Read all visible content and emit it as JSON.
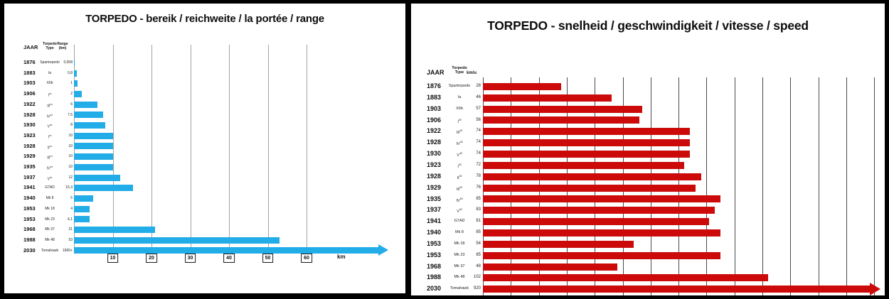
{
  "chart_data": [
    {
      "type": "bar",
      "orientation": "horizontal",
      "panel": "left",
      "title": "TORPEDO - bereik / reichweite / la portée / range",
      "bar_color": "#22ACE8",
      "grid_color": "#a3a3a3",
      "unit": "km",
      "xlabel": "km",
      "axis_ticks": [
        "10",
        "20",
        "30",
        "40",
        "50",
        "60"
      ],
      "xlim": [
        0,
        62
      ],
      "legend": "none",
      "table_headers": {
        "year": "JAAR",
        "type": [
          "Torpedo",
          "Type"
        ],
        "value": [
          "Range",
          "(km)"
        ]
      },
      "rows": [
        {
          "year": "1876",
          "type": "Spartorpedo",
          "sup": "",
          "value_label": "0,008",
          "value": 0.008,
          "arrow": false
        },
        {
          "year": "1883",
          "type": "Ia",
          "sup": "",
          "value_label": "0,8",
          "value": 0.8,
          "arrow": false
        },
        {
          "year": "1903",
          "type": "XIIb",
          "sup": "",
          "value_label": "1",
          "value": 1,
          "arrow": false
        },
        {
          "year": "1906",
          "type": "I",
          "sup": "50",
          "value_label": "2",
          "value": 2,
          "arrow": false
        },
        {
          "year": "1922",
          "type": "III",
          "sup": "45",
          "value_label": "6",
          "value": 6,
          "arrow": false
        },
        {
          "year": "1928",
          "type": "IV",
          "sup": "45",
          "value_label": "7,5",
          "value": 7.5,
          "arrow": false
        },
        {
          "year": "1930",
          "type": "V",
          "sup": "45",
          "value_label": "8",
          "value": 8,
          "arrow": false
        },
        {
          "year": "1923",
          "type": "I",
          "sup": "53",
          "value_label": "10",
          "value": 10,
          "arrow": false
        },
        {
          "year": "1928",
          "type": "II",
          "sup": "53",
          "value_label": "10",
          "value": 10,
          "arrow": false
        },
        {
          "year": "1929",
          "type": "III",
          "sup": "53",
          "value_label": "10",
          "value": 10,
          "arrow": false
        },
        {
          "year": "1935",
          "type": "IV",
          "sup": "53",
          "value_label": "10",
          "value": 10,
          "arrow": false
        },
        {
          "year": "1937",
          "type": "V",
          "sup": "53",
          "value_label": "12",
          "value": 12,
          "arrow": false
        },
        {
          "year": "1941",
          "type": "G7AD",
          "sup": "",
          "value_label": "15,3",
          "value": 15.3,
          "arrow": false
        },
        {
          "year": "1940",
          "type": "Mk 8",
          "sup": "",
          "value_label": "5",
          "value": 5,
          "arrow": false
        },
        {
          "year": "1953",
          "type": "Mk 18",
          "sup": "",
          "value_label": "4",
          "value": 4,
          "arrow": false
        },
        {
          "year": "1953",
          "type": "Mk 23",
          "sup": "",
          "value_label": "4,1",
          "value": 4.1,
          "arrow": false
        },
        {
          "year": "1968",
          "type": "Mk 37",
          "sup": "",
          "value_label": "21",
          "value": 21,
          "arrow": false
        },
        {
          "year": "1988",
          "type": "Mk 48",
          "sup": "",
          "value_label": "53",
          "value": 53,
          "arrow": false
        },
        {
          "year": "2030",
          "type": "Tomahawk",
          "sup": "",
          "value_label": "1600+",
          "value": 1600,
          "arrow": true
        }
      ]
    },
    {
      "type": "bar",
      "orientation": "horizontal",
      "panel": "right",
      "title": "TORPEDO - snelheid / geschwindigkeit / vitesse / speed",
      "bar_color": "#CC0A0A",
      "grid_color": "#4a4a4a",
      "unit": "km/u",
      "xlabel": "km/u",
      "axis_ticks": [],
      "xlim": [
        0,
        140
      ],
      "legend": "none",
      "table_headers": {
        "year": "JAAR",
        "type": [
          "Torpedo",
          "Type"
        ],
        "value": [
          "km/u"
        ]
      },
      "rows": [
        {
          "year": "1876",
          "type": "Spartorpedo",
          "sup": "",
          "value_label": "28",
          "value": 28,
          "arrow": false
        },
        {
          "year": "1883",
          "type": "Ia",
          "sup": "",
          "value_label": "46",
          "value": 46,
          "arrow": false
        },
        {
          "year": "1903",
          "type": "XIIb",
          "sup": "",
          "value_label": "57",
          "value": 57,
          "arrow": false
        },
        {
          "year": "1906",
          "type": "I",
          "sup": "50",
          "value_label": "56",
          "value": 56,
          "arrow": false
        },
        {
          "year": "1922",
          "type": "III",
          "sup": "45",
          "value_label": "74",
          "value": 74,
          "arrow": false
        },
        {
          "year": "1928",
          "type": "IV",
          "sup": "45",
          "value_label": "74",
          "value": 74,
          "arrow": false
        },
        {
          "year": "1930",
          "type": "V",
          "sup": "45",
          "value_label": "74",
          "value": 74,
          "arrow": false
        },
        {
          "year": "1923",
          "type": "I",
          "sup": "53",
          "value_label": "72",
          "value": 72,
          "arrow": false
        },
        {
          "year": "1928",
          "type": "II",
          "sup": "53",
          "value_label": "78",
          "value": 78,
          "arrow": false
        },
        {
          "year": "1929",
          "type": "III",
          "sup": "53",
          "value_label": "76",
          "value": 76,
          "arrow": false
        },
        {
          "year": "1935",
          "type": "IV",
          "sup": "53",
          "value_label": "85",
          "value": 85,
          "arrow": false
        },
        {
          "year": "1937",
          "type": "V",
          "sup": "53",
          "value_label": "83",
          "value": 83,
          "arrow": false
        },
        {
          "year": "1941",
          "type": "G7AD",
          "sup": "",
          "value_label": "81",
          "value": 81,
          "arrow": false
        },
        {
          "year": "1940",
          "type": "Mk 8",
          "sup": "",
          "value_label": "85",
          "value": 85,
          "arrow": false
        },
        {
          "year": "1953",
          "type": "Mk 18",
          "sup": "",
          "value_label": "54",
          "value": 54,
          "arrow": false
        },
        {
          "year": "1953",
          "type": "Mk 23",
          "sup": "",
          "value_label": "85",
          "value": 85,
          "arrow": false
        },
        {
          "year": "1968",
          "type": "Mk 37",
          "sup": "",
          "value_label": "48",
          "value": 48,
          "arrow": false
        },
        {
          "year": "1988",
          "type": "Mk 48",
          "sup": "",
          "value_label": "102",
          "value": 102,
          "arrow": false
        },
        {
          "year": "2030",
          "type": "Tomahawk",
          "sup": "",
          "value_label": "920",
          "value": 920,
          "arrow": true
        }
      ]
    }
  ]
}
